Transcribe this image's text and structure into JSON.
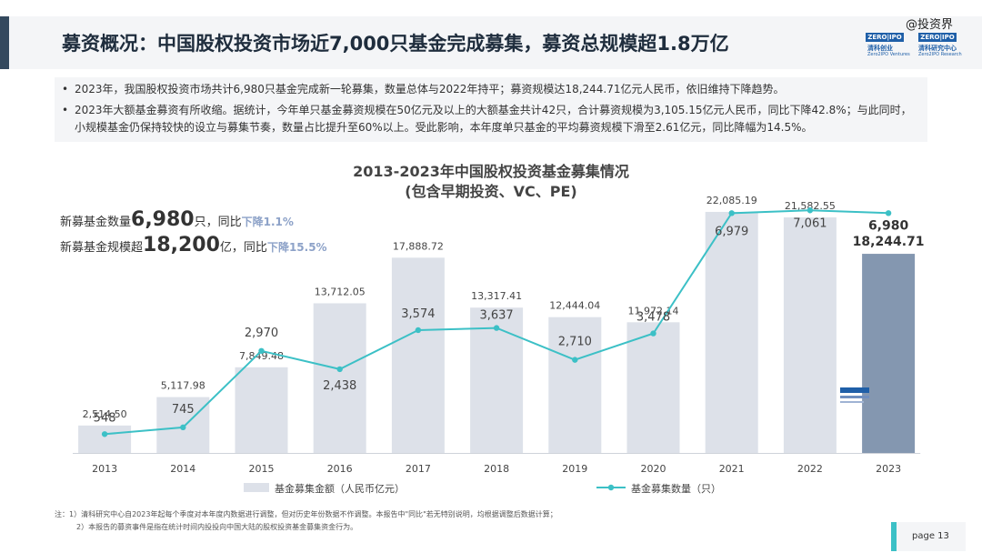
{
  "header": {
    "title": "募资概况：中国股权投资市场近7,000只基金完成募集，募资总规模超1.8万亿",
    "watermark": "@投资界",
    "logo": {
      "zero_a": "ZERO",
      "ipo_a": "IPO",
      "cn_a": "清科创业",
      "en_a": "Zero2IPO Ventures",
      "zero_b": "ZERO",
      "ipo_b": "IPO",
      "cn_b": "清科研究中心",
      "en_b": "Zero2IPO Research"
    }
  },
  "bullets": [
    "2023年，我国股权投资市场共计6,980只基金完成新一轮募集，数量总体与2022年持平；募资规模达18,244.71亿元人民币，依旧维持下降趋势。",
    "2023年大额基金募资有所收缩。据统计，今年单只基金募资规模在50亿元及以上的大额基金共计42只，合计募资规模为3,105.15亿元人民币，同比下降42.8%；与此同时，小规模基金仍保持较快的设立与募集节奏，数量占比提升至60%以上。受此影响，本年度单只基金的平均募资规模下滑至2.61亿元，同比降幅为14.5%。"
  ],
  "chart_data": {
    "type": "bar",
    "title": "2013-2023年中国股权投资基金募集情况",
    "subtitle": "(包含早期投资、VC、PE)",
    "categories": [
      "2013",
      "2014",
      "2015",
      "2016",
      "2017",
      "2018",
      "2019",
      "2020",
      "2021",
      "2022",
      "2023"
    ],
    "series": [
      {
        "name": "基金募集金额（人民币亿元）",
        "type": "bar",
        "values": [
          2514.5,
          5117.98,
          7849.48,
          13712.05,
          17888.72,
          13317.41,
          12444.04,
          11972.14,
          22085.19,
          21582.55,
          18244.71
        ],
        "labels": [
          "2,514.50",
          "5,117.98",
          "7,849.48",
          "13,712.05",
          "17,888.72",
          "13,317.41",
          "12,444.04",
          "11,972.14",
          "22,085.19",
          "21,582.55",
          "18,244.71"
        ]
      },
      {
        "name": "基金募集数量（只）",
        "type": "line",
        "values": [
          548,
          745,
          2970,
          2438,
          3574,
          3637,
          2710,
          3478,
          6979,
          7061,
          6980
        ],
        "labels": [
          "548",
          "745",
          "2,970",
          "2,438",
          "3,574",
          "3,637",
          "2,710",
          "3,478",
          "6,979",
          "7,061",
          "6,980"
        ]
      }
    ],
    "callouts": [
      {
        "prefix": "新募基金数量",
        "value": "6,980",
        "unit": "只，同比",
        "change": "下降1.1%"
      },
      {
        "prefix": "新募基金规模超",
        "value": "18,200",
        "unit": "亿，同比",
        "change": "下降15.5%"
      }
    ],
    "colors": {
      "bar": "#dde1e9",
      "bar_highlight": "#8497b0",
      "line": "#3cc0c6",
      "change": "#8da2c8"
    }
  },
  "footnotes": [
    "注：1）清科研究中心自2023年起每个季度对本年度内数据进行调整，但对历史年份数据不作调整。本报告中\"同比\"若无特别说明，均根据调整后数据计算；",
    "2）本报告的募资事件是指在统计时间内投投向中国大陆的股权投资基金募集资金行为。"
  ],
  "footer": {
    "page": "page  13"
  }
}
